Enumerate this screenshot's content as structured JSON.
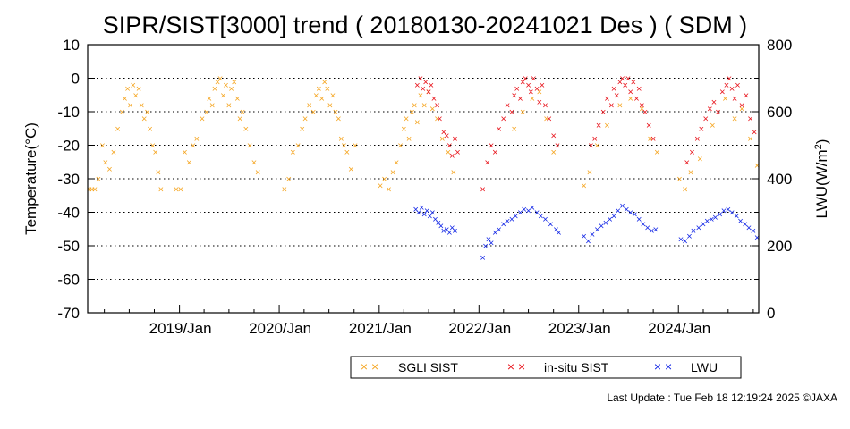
{
  "chart_data": {
    "type": "scatter",
    "title": "SIPR/SIST[3000] trend ( 20180130-20241021 Des ) ( SDM )",
    "ylabel_left": "Temperature(°C)",
    "ylabel_right_base": "LWU(W/m",
    "ylabel_right_sup": "2",
    "ylabel_right_end": ")",
    "ylim_left": [
      -70,
      10
    ],
    "ylim_right": [
      0,
      800
    ],
    "xlim": [
      "2018-01-30",
      "2024-10-21"
    ],
    "yticks_left": [
      "10",
      "0",
      "-10",
      "-20",
      "-30",
      "-40",
      "-50",
      "-60",
      "-70"
    ],
    "yticks_right": [
      "800",
      "600",
      "400",
      "200",
      "0"
    ],
    "xticks": [
      {
        "date": "2019-01-01",
        "label": "2019/Jan"
      },
      {
        "date": "2020-01-01",
        "label": "2020/Jan"
      },
      {
        "date": "2021-01-01",
        "label": "2021/Jan"
      },
      {
        "date": "2022-01-01",
        "label": "2022/Jan"
      },
      {
        "date": "2023-01-01",
        "label": "2023/Jan"
      },
      {
        "date": "2024-01-01",
        "label": "2024/Jan"
      }
    ],
    "grid": "horizontal dotted",
    "legend_position": "bottom-right, below plot",
    "series": [
      {
        "name": "SGLI SIST",
        "axis": "left",
        "color": "#f5a623",
        "points": [
          [
            "2018-02-05",
            -33
          ],
          [
            "2018-02-15",
            -33
          ],
          [
            "2018-02-25",
            -33
          ],
          [
            "2018-03-10",
            -30
          ],
          [
            "2018-03-25",
            -20
          ],
          [
            "2018-04-05",
            -25
          ],
          [
            "2018-04-20",
            -27
          ],
          [
            "2018-05-05",
            -22
          ],
          [
            "2018-05-20",
            -15
          ],
          [
            "2018-06-05",
            -10
          ],
          [
            "2018-06-15",
            -6
          ],
          [
            "2018-06-25",
            -3
          ],
          [
            "2018-07-05",
            -8
          ],
          [
            "2018-07-15",
            -2
          ],
          [
            "2018-07-25",
            -5
          ],
          [
            "2018-08-05",
            -3
          ],
          [
            "2018-08-15",
            -8
          ],
          [
            "2018-08-25",
            -12
          ],
          [
            "2018-09-05",
            -10
          ],
          [
            "2018-09-15",
            -15
          ],
          [
            "2018-09-25",
            -20
          ],
          [
            "2018-10-05",
            -22
          ],
          [
            "2018-10-15",
            -28
          ],
          [
            "2018-10-25",
            -33
          ],
          [
            "2018-12-20",
            -33
          ],
          [
            "2019-01-05",
            -33
          ],
          [
            "2019-01-20",
            -22
          ],
          [
            "2019-02-05",
            -25
          ],
          [
            "2019-02-20",
            -20
          ],
          [
            "2019-03-05",
            -18
          ],
          [
            "2019-03-25",
            -12
          ],
          [
            "2019-04-10",
            -10
          ],
          [
            "2019-04-20",
            -6
          ],
          [
            "2019-05-01",
            -8
          ],
          [
            "2019-05-10",
            -3
          ],
          [
            "2019-05-20",
            -1
          ],
          [
            "2019-05-30",
            0
          ],
          [
            "2019-06-10",
            -5
          ],
          [
            "2019-06-20",
            -2
          ],
          [
            "2019-07-01",
            -8
          ],
          [
            "2019-07-10",
            -3
          ],
          [
            "2019-07-20",
            -1
          ],
          [
            "2019-08-01",
            -6
          ],
          [
            "2019-08-10",
            -12
          ],
          [
            "2019-08-20",
            -10
          ],
          [
            "2019-09-01",
            -15
          ],
          [
            "2019-09-15",
            -20
          ],
          [
            "2019-10-01",
            -25
          ],
          [
            "2019-10-15",
            -28
          ],
          [
            "2020-01-20",
            -33
          ],
          [
            "2020-02-05",
            -30
          ],
          [
            "2020-02-20",
            -22
          ],
          [
            "2020-03-10",
            -20
          ],
          [
            "2020-03-25",
            -15
          ],
          [
            "2020-04-05",
            -12
          ],
          [
            "2020-04-20",
            -8
          ],
          [
            "2020-05-05",
            -10
          ],
          [
            "2020-05-15",
            -5
          ],
          [
            "2020-05-25",
            -3
          ],
          [
            "2020-06-05",
            -6
          ],
          [
            "2020-06-15",
            -1
          ],
          [
            "2020-06-25",
            -3
          ],
          [
            "2020-07-05",
            -8
          ],
          [
            "2020-07-15",
            -5
          ],
          [
            "2020-07-25",
            -10
          ],
          [
            "2020-08-05",
            -12
          ],
          [
            "2020-08-15",
            -18
          ],
          [
            "2020-08-25",
            -20
          ],
          [
            "2020-09-05",
            -22
          ],
          [
            "2020-09-20",
            -27
          ],
          [
            "2020-10-05",
            -20
          ],
          [
            "2021-01-05",
            -32
          ],
          [
            "2021-01-20",
            -30
          ],
          [
            "2021-02-05",
            -33
          ],
          [
            "2021-02-20",
            -28
          ],
          [
            "2021-03-05",
            -25
          ],
          [
            "2021-03-20",
            -20
          ],
          [
            "2021-04-01",
            -15
          ],
          [
            "2021-04-10",
            -12
          ],
          [
            "2021-04-20",
            -18
          ],
          [
            "2021-05-01",
            -10
          ],
          [
            "2021-05-10",
            -8
          ],
          [
            "2021-05-20",
            -13
          ],
          [
            "2021-06-01",
            -5
          ],
          [
            "2021-06-15",
            -8
          ],
          [
            "2021-06-30",
            -4
          ],
          [
            "2021-07-15",
            -9
          ],
          [
            "2021-08-01",
            -12
          ],
          [
            "2021-08-20",
            -18
          ],
          [
            "2021-09-10",
            -22
          ],
          [
            "2021-09-30",
            -28
          ],
          [
            "2022-05-10",
            -15
          ],
          [
            "2022-06-10",
            -10
          ],
          [
            "2022-07-15",
            -6
          ],
          [
            "2022-08-10",
            -4
          ],
          [
            "2022-09-05",
            -12
          ],
          [
            "2022-10-01",
            -22
          ],
          [
            "2023-01-20",
            -32
          ],
          [
            "2023-02-10",
            -28
          ],
          [
            "2023-03-10",
            -20
          ],
          [
            "2023-04-15",
            -14
          ],
          [
            "2023-06-01",
            -8
          ],
          [
            "2023-07-10",
            -6
          ],
          [
            "2023-08-20",
            -9
          ],
          [
            "2023-09-20",
            -18
          ],
          [
            "2023-10-15",
            -22
          ],
          [
            "2024-01-05",
            -30
          ],
          [
            "2024-01-25",
            -33
          ],
          [
            "2024-02-15",
            -28
          ],
          [
            "2024-03-20",
            -24
          ],
          [
            "2024-05-05",
            -14
          ],
          [
            "2024-06-20",
            -6
          ],
          [
            "2024-07-25",
            -12
          ],
          [
            "2024-08-20",
            -9
          ],
          [
            "2024-09-20",
            -18
          ],
          [
            "2024-10-15",
            -26
          ]
        ]
      },
      {
        "name": "in-situ SIST",
        "axis": "left",
        "color": "#e8141c",
        "points": [
          [
            "2021-05-20",
            -2
          ],
          [
            "2021-06-01",
            0
          ],
          [
            "2021-06-10",
            -3
          ],
          [
            "2021-06-20",
            -1
          ],
          [
            "2021-07-01",
            -4
          ],
          [
            "2021-07-10",
            -2
          ],
          [
            "2021-07-20",
            -6
          ],
          [
            "2021-08-01",
            -8
          ],
          [
            "2021-08-10",
            -12
          ],
          [
            "2021-08-25",
            -16
          ],
          [
            "2021-09-05",
            -17
          ],
          [
            "2021-09-15",
            -20
          ],
          [
            "2021-09-25",
            -23
          ],
          [
            "2021-10-05",
            -18
          ],
          [
            "2021-10-15",
            -22
          ],
          [
            "2022-01-15",
            -33
          ],
          [
            "2022-02-01",
            -25
          ],
          [
            "2022-02-15",
            -20
          ],
          [
            "2022-03-01",
            -22
          ],
          [
            "2022-03-15",
            -15
          ],
          [
            "2022-04-01",
            -12
          ],
          [
            "2022-04-15",
            -8
          ],
          [
            "2022-05-01",
            -10
          ],
          [
            "2022-05-10",
            -5
          ],
          [
            "2022-05-20",
            -3
          ],
          [
            "2022-06-01",
            -6
          ],
          [
            "2022-06-10",
            -1
          ],
          [
            "2022-06-20",
            0
          ],
          [
            "2022-07-01",
            -2
          ],
          [
            "2022-07-10",
            -4
          ],
          [
            "2022-07-20",
            0
          ],
          [
            "2022-08-01",
            -3
          ],
          [
            "2022-08-10",
            -7
          ],
          [
            "2022-08-20",
            -2
          ],
          [
            "2022-09-01",
            -8
          ],
          [
            "2022-09-15",
            -12
          ],
          [
            "2022-10-01",
            -17
          ],
          [
            "2022-10-15",
            -20
          ],
          [
            "2023-02-15",
            -20
          ],
          [
            "2023-03-01",
            -18
          ],
          [
            "2023-03-15",
            -14
          ],
          [
            "2023-04-01",
            -10
          ],
          [
            "2023-04-15",
            -6
          ],
          [
            "2023-05-01",
            -8
          ],
          [
            "2023-05-10",
            -3
          ],
          [
            "2023-05-20",
            -5
          ],
          [
            "2023-06-01",
            -1
          ],
          [
            "2023-06-10",
            0
          ],
          [
            "2023-06-20",
            -2
          ],
          [
            "2023-07-01",
            0
          ],
          [
            "2023-07-10",
            -4
          ],
          [
            "2023-07-20",
            -1
          ],
          [
            "2023-08-01",
            -6
          ],
          [
            "2023-08-10",
            -3
          ],
          [
            "2023-08-20",
            -8
          ],
          [
            "2023-09-01",
            -10
          ],
          [
            "2023-09-15",
            -14
          ],
          [
            "2023-10-01",
            -18
          ],
          [
            "2024-02-01",
            -25
          ],
          [
            "2024-02-20",
            -22
          ],
          [
            "2024-03-10",
            -18
          ],
          [
            "2024-03-25",
            -15
          ],
          [
            "2024-04-10",
            -12
          ],
          [
            "2024-04-25",
            -9
          ],
          [
            "2024-05-10",
            -7
          ],
          [
            "2024-05-25",
            -10
          ],
          [
            "2024-06-10",
            -4
          ],
          [
            "2024-06-25",
            -2
          ],
          [
            "2024-07-05",
            0
          ],
          [
            "2024-07-15",
            -3
          ],
          [
            "2024-07-25",
            -6
          ],
          [
            "2024-08-05",
            -2
          ],
          [
            "2024-08-20",
            -8
          ],
          [
            "2024-09-05",
            -5
          ],
          [
            "2024-09-20",
            -12
          ],
          [
            "2024-10-05",
            -16
          ]
        ]
      },
      {
        "name": "LWU",
        "axis": "right",
        "color": "#1428e6",
        "points": [
          [
            "2021-05-15",
            310
          ],
          [
            "2021-05-25",
            300
          ],
          [
            "2021-06-05",
            315
          ],
          [
            "2021-06-15",
            295
          ],
          [
            "2021-06-25",
            305
          ],
          [
            "2021-07-05",
            290
          ],
          [
            "2021-07-15",
            300
          ],
          [
            "2021-07-25",
            280
          ],
          [
            "2021-08-05",
            270
          ],
          [
            "2021-08-15",
            260
          ],
          [
            "2021-08-25",
            245
          ],
          [
            "2021-09-05",
            250
          ],
          [
            "2021-09-15",
            240
          ],
          [
            "2021-09-25",
            255
          ],
          [
            "2021-10-05",
            245
          ],
          [
            "2022-01-15",
            165
          ],
          [
            "2022-01-25",
            200
          ],
          [
            "2022-02-05",
            220
          ],
          [
            "2022-02-15",
            210
          ],
          [
            "2022-03-01",
            240
          ],
          [
            "2022-03-15",
            250
          ],
          [
            "2022-04-01",
            265
          ],
          [
            "2022-04-15",
            275
          ],
          [
            "2022-05-01",
            280
          ],
          [
            "2022-05-15",
            290
          ],
          [
            "2022-06-01",
            300
          ],
          [
            "2022-06-15",
            310
          ],
          [
            "2022-07-01",
            305
          ],
          [
            "2022-07-15",
            315
          ],
          [
            "2022-08-01",
            300
          ],
          [
            "2022-08-15",
            290
          ],
          [
            "2022-09-01",
            280
          ],
          [
            "2022-09-20",
            265
          ],
          [
            "2022-10-10",
            250
          ],
          [
            "2022-10-20",
            240
          ],
          [
            "2023-01-20",
            230
          ],
          [
            "2023-02-05",
            215
          ],
          [
            "2023-02-20",
            235
          ],
          [
            "2023-03-10",
            250
          ],
          [
            "2023-03-25",
            260
          ],
          [
            "2023-04-10",
            270
          ],
          [
            "2023-04-25",
            280
          ],
          [
            "2023-05-10",
            290
          ],
          [
            "2023-05-25",
            305
          ],
          [
            "2023-06-10",
            320
          ],
          [
            "2023-06-25",
            310
          ],
          [
            "2023-07-10",
            300
          ],
          [
            "2023-07-25",
            295
          ],
          [
            "2023-08-10",
            280
          ],
          [
            "2023-08-25",
            265
          ],
          [
            "2023-09-10",
            255
          ],
          [
            "2023-09-25",
            245
          ],
          [
            "2023-10-10",
            250
          ],
          [
            "2024-01-10",
            220
          ],
          [
            "2024-01-25",
            215
          ],
          [
            "2024-02-10",
            230
          ],
          [
            "2024-02-25",
            245
          ],
          [
            "2024-03-15",
            255
          ],
          [
            "2024-04-01",
            265
          ],
          [
            "2024-04-15",
            275
          ],
          [
            "2024-05-01",
            280
          ],
          [
            "2024-05-15",
            285
          ],
          [
            "2024-06-01",
            295
          ],
          [
            "2024-06-15",
            305
          ],
          [
            "2024-07-01",
            310
          ],
          [
            "2024-07-15",
            300
          ],
          [
            "2024-08-01",
            290
          ],
          [
            "2024-08-15",
            275
          ],
          [
            "2024-09-01",
            265
          ],
          [
            "2024-09-15",
            255
          ],
          [
            "2024-10-01",
            245
          ],
          [
            "2024-10-15",
            225
          ]
        ]
      }
    ]
  },
  "legend": {
    "items": [
      {
        "label": "SGLI SIST",
        "color": "#f5a623"
      },
      {
        "label": "in-situ SIST",
        "color": "#e8141c"
      },
      {
        "label": "LWU",
        "color": "#1428e6"
      }
    ]
  },
  "footer": {
    "last_update": "Last Update : Tue Feb 18 12:19:24 2025  ©JAXA"
  }
}
